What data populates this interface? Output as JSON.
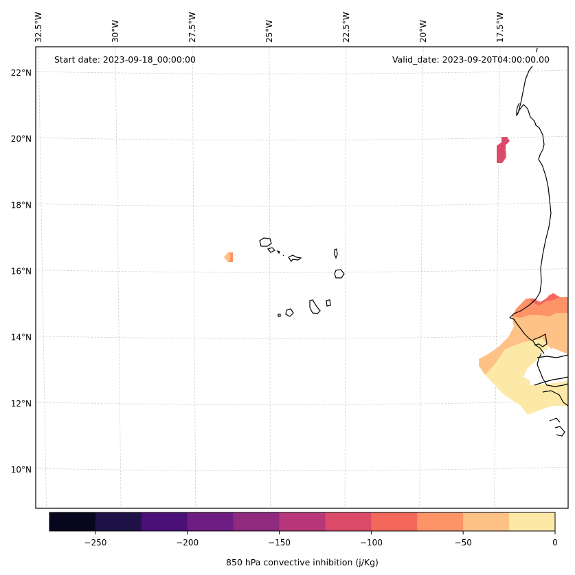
{
  "chart_data": {
    "type": "heatmap",
    "title": "",
    "annotations": {
      "start_date": "Start date: 2023-09-18_00:00:00",
      "valid_date": "Valid_date: 2023-09-20T04:00:00.00"
    },
    "longitude_ticks": [
      "32.5°W",
      "30°W",
      "27.5°W",
      "25°W",
      "22.5°W",
      "20°W",
      "17.5°W"
    ],
    "latitude_ticks": [
      "22°N",
      "20°N",
      "18°N",
      "16°N",
      "14°N",
      "12°N",
      "10°N"
    ],
    "lon_values": [
      -32.5,
      -30,
      -27.5,
      -25,
      -22.5,
      -20,
      -17.5
    ],
    "lat_values": [
      22,
      20,
      18,
      16,
      14,
      12,
      10
    ],
    "extent": {
      "lon_min": -32.6,
      "lon_max": -16.3,
      "lat_min": 8.9,
      "lat_max": 22.8
    },
    "grid": true,
    "colorbar": {
      "label": "850 hPa convective inhibition (j/Kg)",
      "orientation": "horizontal",
      "placement": "bottom",
      "range": [
        -275,
        0
      ],
      "boundaries": [
        -275,
        -250,
        -225,
        -200,
        -175,
        -150,
        -125,
        -100,
        -75,
        -50,
        -25,
        0
      ],
      "colors": [
        "#07061c",
        "#1e1246",
        "#4a1077",
        "#6d1d81",
        "#8f2a7f",
        "#b7377a",
        "#dc4a6a",
        "#f4685c",
        "#fd9468",
        "#fec287",
        "#fce9a8"
      ],
      "tick_values": [
        -250,
        -200,
        -150,
        -100,
        -50,
        0
      ],
      "tick_labels": [
        "−250",
        "−200",
        "−150",
        "−100",
        "−50",
        "0"
      ]
    },
    "features": [
      {
        "name": "CIN patch near 19.7°N 17.5°W",
        "value_range": [
          -125,
          -100
        ],
        "color": "#dc4a6a"
      },
      {
        "name": "CIN patch near 16.4°N 27.2°W",
        "value_range": [
          -75,
          -25
        ],
        "color": "#fec287"
      },
      {
        "name": "CIN region off Senegal/Gambia coast 11.5–15°N",
        "value_range": [
          -125,
          0
        ],
        "colors": [
          "#f4685c",
          "#fd9468",
          "#fec287",
          "#fce9a8"
        ]
      }
    ]
  }
}
